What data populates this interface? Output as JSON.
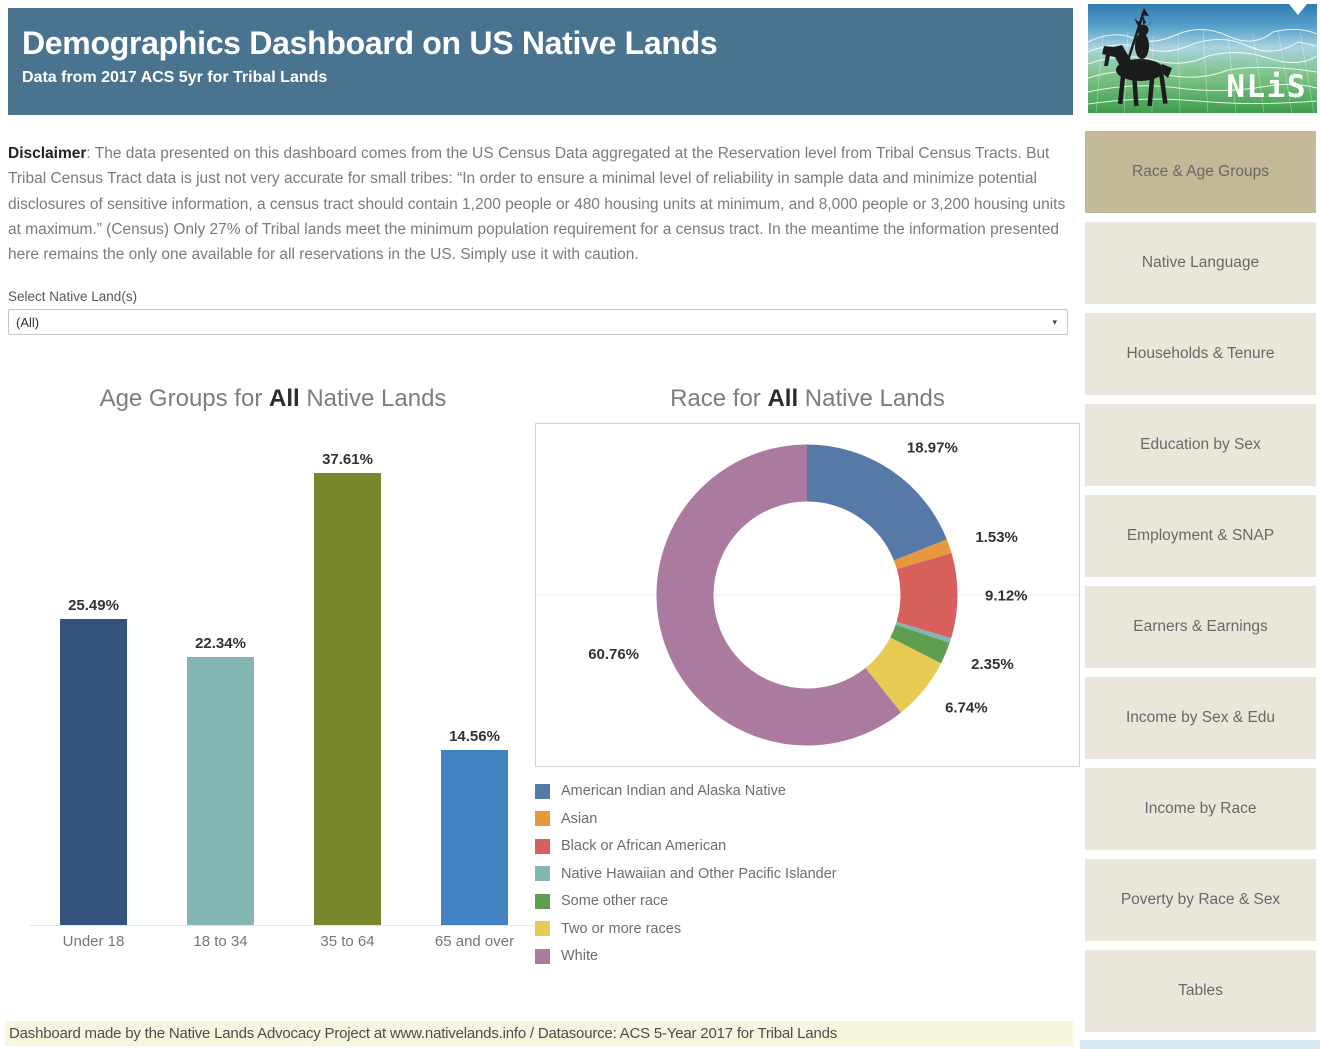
{
  "header": {
    "title": "Demographics Dashboard on US Native Lands",
    "subtitle": "Data from 2017 ACS 5yr for Tribal Lands",
    "bg_color": "#4a7390",
    "logo_text": "NLiS",
    "logo_icons": [
      "horse-rider-silhouette-icon",
      "wireframe-mountains-icon",
      "caret-down-notch-icon"
    ]
  },
  "disclaimer": {
    "label": "Disclaimer",
    "text": ": The data presented on this dashboard comes from the US Census Data aggregated at the Reservation level from Tribal Census Tracts. But Tribal Census Tract data is just not very accurate for small tribes: “In order to ensure a minimal level of reliability in sample data and minimize potential disclosures of sensitive information, a census tract should contain 1,200 people or 480 housing units at minimum, and 8,000 people or 3,200 housing units at maximum.” (Census) Only 27% of Tribal lands meet the minimum population requirement for a census tract. In the meantime the information presented here remains the only one available for all reservations in the US. Simply use it with caution."
  },
  "filter": {
    "label": "Select Native Land(s)",
    "value": "(All)",
    "caret_icon": "▾"
  },
  "sidebar": {
    "active_index": 0,
    "items": [
      {
        "label": "Race & Age Groups"
      },
      {
        "label": "Native Language"
      },
      {
        "label": "Households & Tenure"
      },
      {
        "label": "Education by Sex"
      },
      {
        "label": "Employment & SNAP"
      },
      {
        "label": "Earners & Earnings"
      },
      {
        "label": "Income by Sex & Edu"
      },
      {
        "label": "Income by Race"
      },
      {
        "label": "Poverty by Race & Sex"
      },
      {
        "label": "Tables"
      }
    ],
    "active_bg": "#c3b997",
    "inactive_bg": "#eae7da"
  },
  "footer": {
    "text": "Dashboard made by the Native Lands Advocacy Project at www.nativelands.info / Datasource: ACS 5-Year 2017 for Tribal Lands",
    "bg_color": "#f8f5df"
  },
  "chart_data": [
    {
      "type": "bar",
      "title_prefix": "Age Groups for ",
      "title_bold": "All",
      "title_suffix": " Native Lands",
      "categories": [
        "Under 18",
        "18 to 34",
        "35 to 64",
        "65 and over"
      ],
      "values": [
        25.49,
        22.34,
        37.61,
        14.56
      ],
      "value_labels": [
        "25.49%",
        "22.34%",
        "37.61%",
        "14.56%"
      ],
      "colors": [
        "#35517e",
        "#83b6b2",
        "#78862e",
        "#4383c1"
      ],
      "ylabel": "",
      "xlabel": "",
      "ylim": [
        0,
        40
      ],
      "grid": false,
      "legend": "none"
    },
    {
      "type": "pie",
      "subtype": "donut",
      "title_prefix": "Race for ",
      "title_bold": "All",
      "title_suffix": " Native Lands",
      "start_angle_deg": 0,
      "direction": "clockwise",
      "legend_position": "bottom-left",
      "slices": [
        {
          "label": "American Indian and Alaska Native",
          "value": 18.97,
          "display": "18.97%",
          "color": "#567aa7"
        },
        {
          "label": "Asian",
          "value": 1.53,
          "display": "1.53%",
          "color": "#e8973d"
        },
        {
          "label": "Black or African American",
          "value": 9.12,
          "display": "9.12%",
          "color": "#d75f5c"
        },
        {
          "label": "Native Hawaiian and Other Pacific Islander",
          "value": 0.53,
          "display": "",
          "color": "#83b6b1"
        },
        {
          "label": "Some other race",
          "value": 2.35,
          "display": "2.35%",
          "color": "#5f9e4f"
        },
        {
          "label": "Two or more races",
          "value": 6.74,
          "display": "6.74%",
          "color": "#e7cb54"
        },
        {
          "label": "White",
          "value": 60.76,
          "display": "60.76%",
          "color": "#aa7b9f"
        }
      ]
    }
  ]
}
